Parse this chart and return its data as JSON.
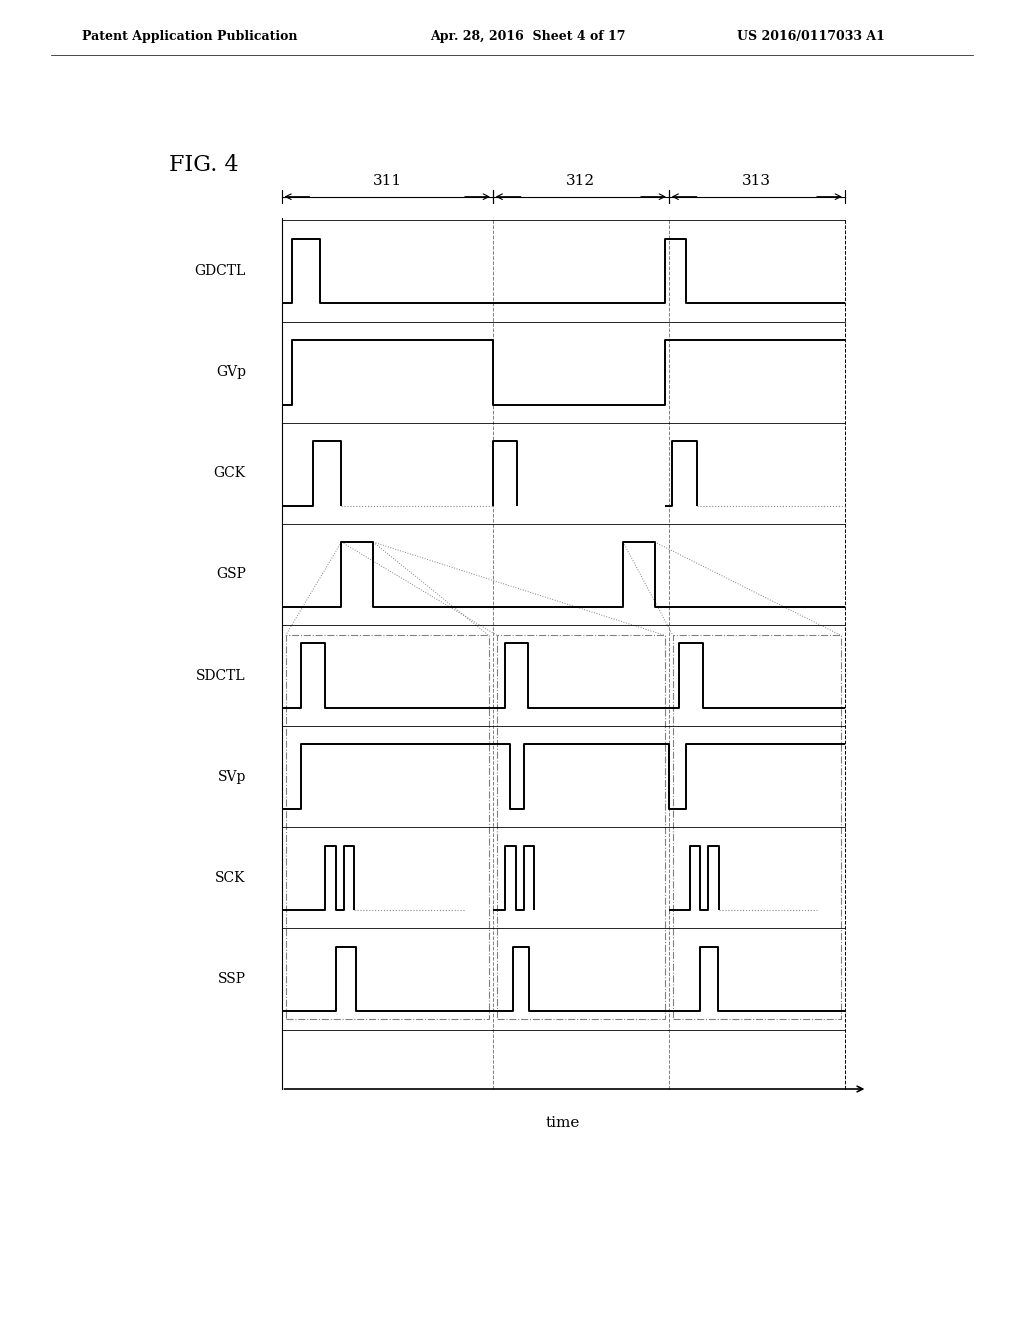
{
  "title": "FIG. 4",
  "header_left": "Patent Application Publication",
  "header_mid": "Apr. 28, 2016  Sheet 4 of 17",
  "header_right": "US 2016/0117033 A1",
  "xlabel": "time",
  "signals": [
    "GDCTL",
    "GVp",
    "GCK",
    "GSP",
    "SDCTL",
    "SVp",
    "SCK",
    "SSP"
  ],
  "period_labels": [
    "311",
    "312",
    "313"
  ],
  "t_period_ends": [
    3.0,
    5.5,
    8.0
  ],
  "t_total": 8.0,
  "background_color": "#ffffff",
  "line_color": "#000000",
  "dash_color": "#888888"
}
